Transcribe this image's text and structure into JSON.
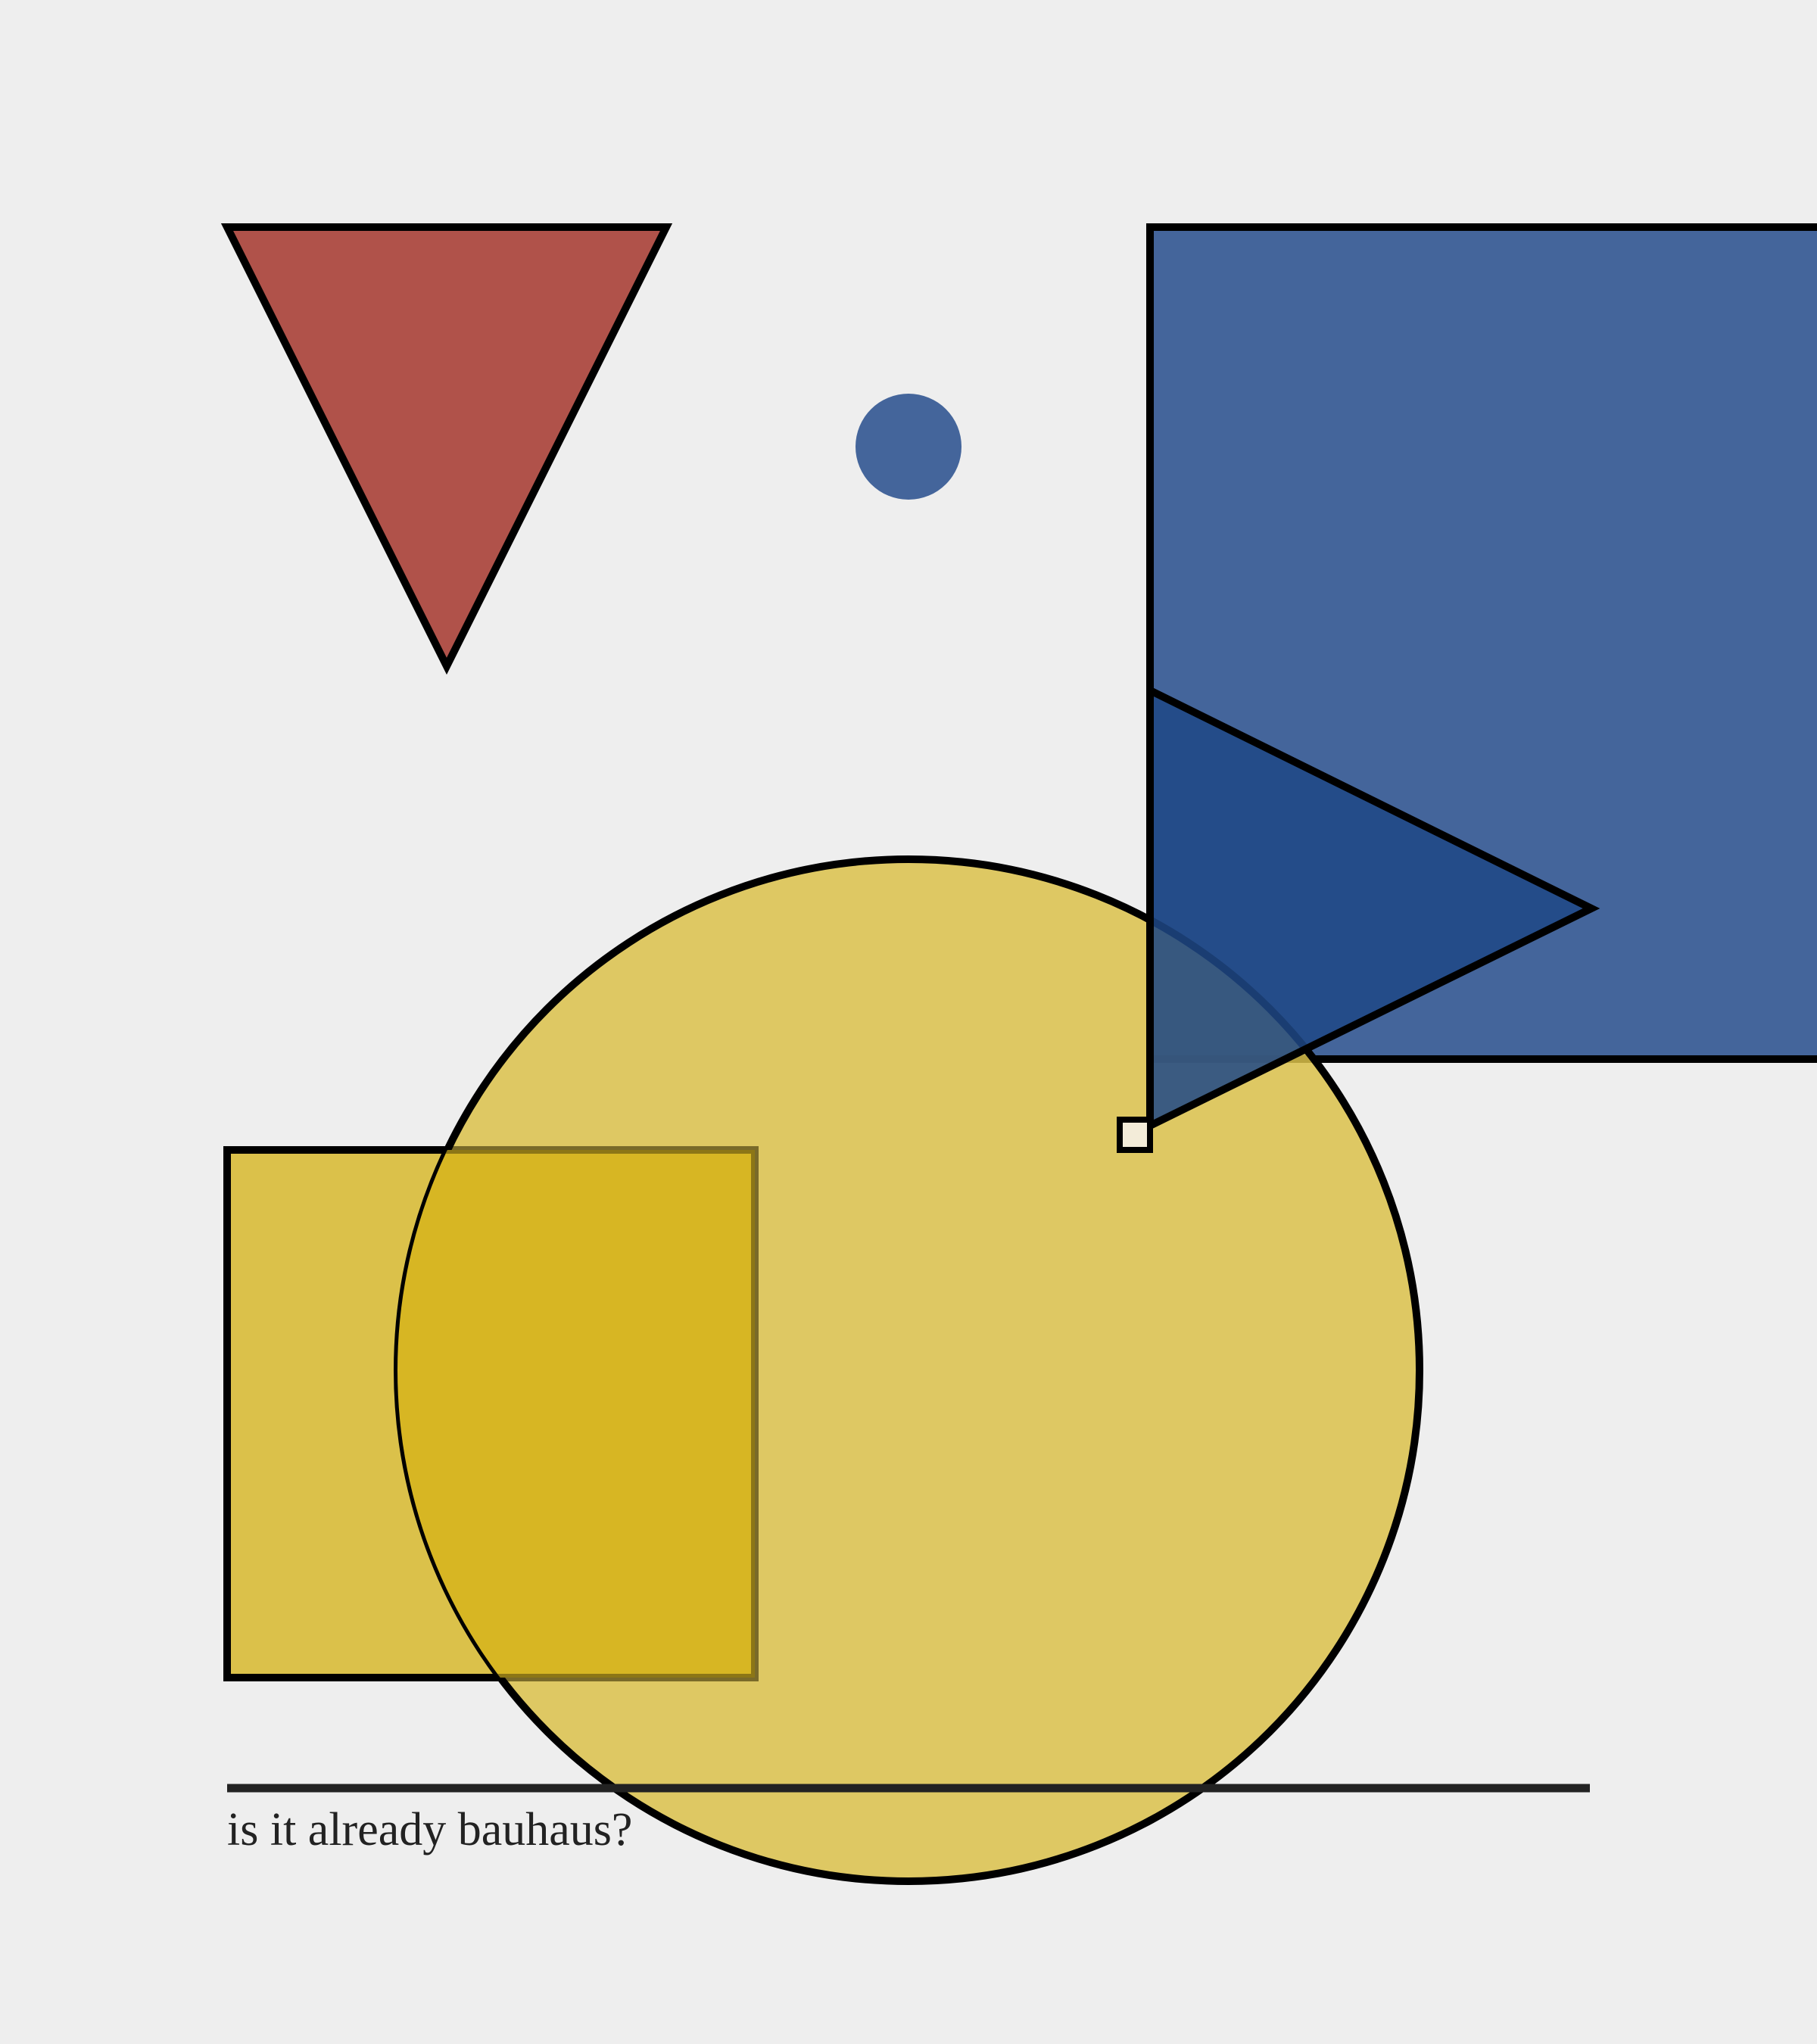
{
  "caption": "is it already bauhaus?",
  "colors": {
    "background": "#eeeeee",
    "red": "#b0524a",
    "blue": "#44659b",
    "dark_blue": "#1f4886",
    "yellow": "#dbc14a",
    "yellow_overlap": "#d7b623",
    "small_square": "#f3ecd9",
    "outline": "#000000",
    "rule_line": "#222222",
    "text": "#222222"
  }
}
